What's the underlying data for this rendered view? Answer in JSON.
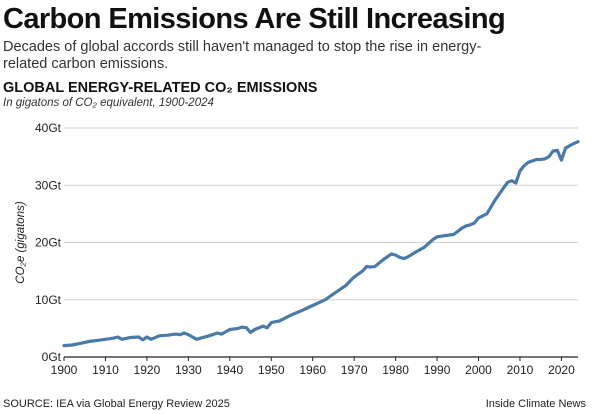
{
  "header": {
    "headline": "Carbon Emissions Are Still Increasing",
    "dek": "Decades of global accords still haven't managed to stop the rise in energy-related carbon emissions."
  },
  "footer": {
    "source": "SOURCE: IEA via Global Energy Review 2025",
    "credit": "Inside Climate News"
  },
  "colors": {
    "line": "#4a7aa8",
    "grid": "#cfcfcf",
    "axis": "#222222",
    "text": "#1a1a1a"
  },
  "chart_data": {
    "type": "line",
    "title": "GLOBAL ENERGY-RELATED CO₂ EMISSIONS",
    "subtitle": "In gigatons of CO₂ equivalent, 1900-2024",
    "xlabel": "",
    "ylabel": "CO₂e (gigatons)",
    "xlim": [
      1900,
      2024
    ],
    "ylim": [
      0,
      40
    ],
    "grid": true,
    "x_ticks": [
      1900,
      1910,
      1920,
      1930,
      1940,
      1950,
      1960,
      1970,
      1980,
      1990,
      2000,
      2010,
      2020
    ],
    "y_ticks": [
      0,
      10,
      20,
      30,
      40
    ],
    "y_tick_labels": [
      "0Gt",
      "10Gt",
      "20Gt",
      "30Gt",
      "40Gt"
    ],
    "series": [
      {
        "x": [
          1900,
          1902,
          1904,
          1906,
          1908,
          1910,
          1912,
          1913,
          1914,
          1916,
          1918,
          1919,
          1920,
          1921,
          1923,
          1925,
          1927,
          1928,
          1929,
          1930,
          1931,
          1932,
          1933,
          1935,
          1937,
          1938,
          1940,
          1942,
          1943,
          1944,
          1945,
          1946,
          1948,
          1949,
          1950,
          1952,
          1955,
          1957,
          1960,
          1963,
          1965,
          1968,
          1970,
          1972,
          1973,
          1974,
          1975,
          1977,
          1979,
          1980,
          1981,
          1982,
          1983,
          1985,
          1987,
          1989,
          1990,
          1992,
          1994,
          1996,
          1997,
          1998,
          1999,
          2000,
          2002,
          2004,
          2006,
          2007,
          2008,
          2009,
          2010,
          2011,
          2012,
          2014,
          2015,
          2016,
          2017,
          2018,
          2019,
          2020,
          2021,
          2022,
          2023,
          2024
        ],
        "y": [
          2.0,
          2.1,
          2.4,
          2.7,
          2.9,
          3.1,
          3.3,
          3.5,
          3.1,
          3.4,
          3.5,
          3.0,
          3.5,
          3.1,
          3.7,
          3.8,
          4.0,
          3.9,
          4.2,
          3.9,
          3.5,
          3.1,
          3.3,
          3.7,
          4.2,
          4.0,
          4.8,
          5.0,
          5.2,
          5.1,
          4.3,
          4.8,
          5.4,
          5.1,
          6.0,
          6.3,
          7.4,
          8.0,
          9.0,
          10.0,
          11.0,
          12.5,
          14.0,
          15.0,
          15.8,
          15.7,
          15.8,
          17.0,
          18.0,
          17.8,
          17.4,
          17.2,
          17.5,
          18.4,
          19.2,
          20.5,
          21.0,
          21.2,
          21.4,
          22.5,
          22.9,
          23.1,
          23.4,
          24.3,
          25.0,
          27.4,
          29.5,
          30.5,
          30.8,
          30.4,
          32.5,
          33.4,
          34.0,
          34.5,
          34.5,
          34.6,
          35.0,
          36.0,
          36.1,
          34.4,
          36.5,
          36.9,
          37.3,
          37.6
        ]
      }
    ]
  }
}
